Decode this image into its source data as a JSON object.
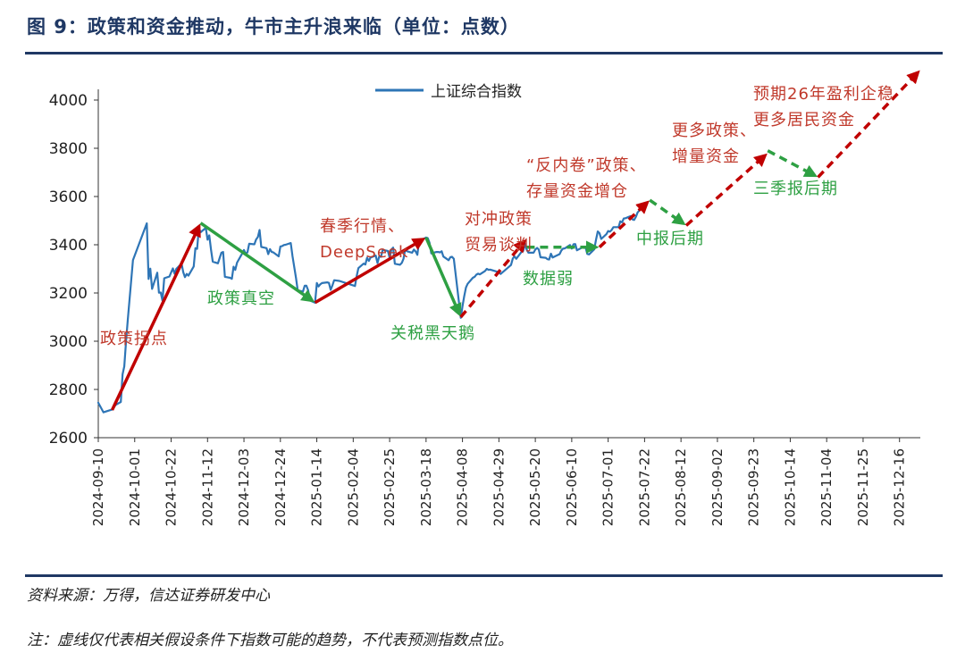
{
  "figure": {
    "title": "图 9：政策和资金推动，牛市主升浪来临（单位：点数）",
    "source": "资料来源：万得，信达证券研发中心",
    "note": "注：虚线仅代表相关假设条件下指数可能的趋势，不代表预测指数点位。"
  },
  "colors": {
    "series": "#2e75b6",
    "up": "#c00000",
    "down": "#2ea043",
    "label_up": "#c0392b",
    "label_down": "#2ea043",
    "axis": "#333333",
    "title": "#1f3864"
  },
  "chart_data": {
    "type": "line",
    "title": "政策和资金推动，牛市主升浪来临",
    "xlabel": "",
    "ylabel": "点数",
    "ylim": [
      2600,
      4000
    ],
    "yticks": [
      2600,
      2800,
      3000,
      3200,
      3400,
      3600,
      3800,
      4000
    ],
    "xlim": [
      "2024-09-10",
      "2025-12-28"
    ],
    "xticks": [
      "2024-09-10",
      "2024-10-01",
      "2024-10-22",
      "2024-11-12",
      "2024-12-03",
      "2024-12-24",
      "2025-01-14",
      "2025-02-04",
      "2025-02-25",
      "2025-03-18",
      "2025-04-08",
      "2025-04-29",
      "2025-05-20",
      "2025-06-10",
      "2025-07-01",
      "2025-07-22",
      "2025-08-12",
      "2025-09-02",
      "2025-09-23",
      "2025-10-14",
      "2025-11-04",
      "2025-11-25",
      "2025-12-16"
    ],
    "legend": {
      "label": "上证综合指数",
      "position": "top"
    },
    "series": [
      {
        "name": "上证综合指数",
        "points": [
          [
            "2024-09-10",
            2745
          ],
          [
            "2024-09-12",
            2718
          ],
          [
            "2024-09-13",
            2705
          ],
          [
            "2024-09-18",
            2717
          ],
          [
            "2024-09-20",
            2736
          ],
          [
            "2024-09-23",
            2748
          ],
          [
            "2024-09-24",
            2863
          ],
          [
            "2024-09-25",
            2896
          ],
          [
            "2024-09-26",
            3001
          ],
          [
            "2024-09-27",
            3088
          ],
          [
            "2024-09-30",
            3336
          ],
          [
            "2024-10-08",
            3489
          ],
          [
            "2024-10-09",
            3258
          ],
          [
            "2024-10-10",
            3301
          ],
          [
            "2024-10-11",
            3217
          ],
          [
            "2024-10-14",
            3284
          ],
          [
            "2024-10-15",
            3201
          ],
          [
            "2024-10-16",
            3202
          ],
          [
            "2024-10-17",
            3169
          ],
          [
            "2024-10-18",
            3261
          ],
          [
            "2024-10-21",
            3268
          ],
          [
            "2024-10-22",
            3285
          ],
          [
            "2024-10-23",
            3302
          ],
          [
            "2024-10-24",
            3280
          ],
          [
            "2024-10-25",
            3300
          ],
          [
            "2024-10-28",
            3322
          ],
          [
            "2024-10-29",
            3286
          ],
          [
            "2024-10-30",
            3266
          ],
          [
            "2024-10-31",
            3279
          ],
          [
            "2024-11-01",
            3272
          ],
          [
            "2024-11-04",
            3310
          ],
          [
            "2024-11-05",
            3386
          ],
          [
            "2024-11-06",
            3383
          ],
          [
            "2024-11-07",
            3470
          ],
          [
            "2024-11-08",
            3452
          ],
          [
            "2024-11-11",
            3470
          ],
          [
            "2024-11-12",
            3421
          ],
          [
            "2024-11-13",
            3439
          ],
          [
            "2024-11-14",
            3379
          ],
          [
            "2024-11-15",
            3330
          ],
          [
            "2024-11-18",
            3323
          ],
          [
            "2024-11-19",
            3346
          ],
          [
            "2024-11-20",
            3367
          ],
          [
            "2024-11-21",
            3370
          ],
          [
            "2024-11-22",
            3267
          ],
          [
            "2024-11-25",
            3263
          ],
          [
            "2024-11-26",
            3259
          ],
          [
            "2024-11-27",
            3309
          ],
          [
            "2024-11-28",
            3296
          ],
          [
            "2024-11-29",
            3326
          ],
          [
            "2024-12-02",
            3364
          ],
          [
            "2024-12-03",
            3378
          ],
          [
            "2024-12-04",
            3364
          ],
          [
            "2024-12-05",
            3368
          ],
          [
            "2024-12-06",
            3404
          ],
          [
            "2024-12-09",
            3402
          ],
          [
            "2024-12-10",
            3422
          ],
          [
            "2024-12-11",
            3432
          ],
          [
            "2024-12-12",
            3461
          ],
          [
            "2024-12-13",
            3391
          ],
          [
            "2024-12-16",
            3386
          ],
          [
            "2024-12-17",
            3361
          ],
          [
            "2024-12-18",
            3382
          ],
          [
            "2024-12-19",
            3370
          ],
          [
            "2024-12-20",
            3368
          ],
          [
            "2024-12-23",
            3352
          ],
          [
            "2024-12-24",
            3393
          ],
          [
            "2024-12-25",
            3394
          ],
          [
            "2024-12-26",
            3399
          ],
          [
            "2024-12-27",
            3400
          ],
          [
            "2024-12-30",
            3407
          ],
          [
            "2024-12-31",
            3352
          ],
          [
            "2025-01-02",
            3262
          ],
          [
            "2025-01-03",
            3211
          ],
          [
            "2025-01-06",
            3206
          ],
          [
            "2025-01-07",
            3230
          ],
          [
            "2025-01-08",
            3230
          ],
          [
            "2025-01-09",
            3211
          ],
          [
            "2025-01-10",
            3169
          ],
          [
            "2025-01-13",
            3160
          ],
          [
            "2025-01-14",
            3241
          ],
          [
            "2025-01-15",
            3227
          ],
          [
            "2025-01-16",
            3236
          ],
          [
            "2025-01-17",
            3241
          ],
          [
            "2025-01-20",
            3244
          ],
          [
            "2025-01-21",
            3242
          ],
          [
            "2025-01-22",
            3213
          ],
          [
            "2025-01-23",
            3231
          ],
          [
            "2025-01-24",
            3253
          ],
          [
            "2025-01-27",
            3250
          ],
          [
            "2025-02-05",
            3229
          ],
          [
            "2025-02-06",
            3270
          ],
          [
            "2025-02-07",
            3303
          ],
          [
            "2025-02-10",
            3322
          ],
          [
            "2025-02-11",
            3318
          ],
          [
            "2025-02-12",
            3346
          ],
          [
            "2025-02-13",
            3333
          ],
          [
            "2025-02-14",
            3347
          ],
          [
            "2025-02-17",
            3355
          ],
          [
            "2025-02-18",
            3324
          ],
          [
            "2025-02-19",
            3352
          ],
          [
            "2025-02-20",
            3350
          ],
          [
            "2025-02-21",
            3379
          ],
          [
            "2025-02-24",
            3374
          ],
          [
            "2025-02-25",
            3346
          ],
          [
            "2025-02-26",
            3380
          ],
          [
            "2025-02-27",
            3388
          ],
          [
            "2025-02-28",
            3321
          ],
          [
            "2025-03-03",
            3317
          ],
          [
            "2025-03-04",
            3325
          ],
          [
            "2025-03-05",
            3342
          ],
          [
            "2025-03-06",
            3381
          ],
          [
            "2025-03-07",
            3373
          ],
          [
            "2025-03-10",
            3367
          ],
          [
            "2025-03-11",
            3380
          ],
          [
            "2025-03-12",
            3372
          ],
          [
            "2025-03-13",
            3358
          ],
          [
            "2025-03-14",
            3419
          ],
          [
            "2025-03-17",
            3426
          ],
          [
            "2025-03-18",
            3430
          ],
          [
            "2025-03-19",
            3427
          ],
          [
            "2025-03-20",
            3408
          ],
          [
            "2025-03-21",
            3364
          ],
          [
            "2025-03-24",
            3370
          ],
          [
            "2025-03-25",
            3370
          ],
          [
            "2025-03-26",
            3368
          ],
          [
            "2025-03-27",
            3373
          ],
          [
            "2025-03-28",
            3351
          ],
          [
            "2025-03-31",
            3336
          ],
          [
            "2025-04-01",
            3348
          ],
          [
            "2025-04-02",
            3350
          ],
          [
            "2025-04-03",
            3342
          ],
          [
            "2025-04-07",
            3097
          ],
          [
            "2025-04-08",
            3145
          ],
          [
            "2025-04-09",
            3186
          ],
          [
            "2025-04-10",
            3223
          ],
          [
            "2025-04-11",
            3238
          ],
          [
            "2025-04-14",
            3263
          ],
          [
            "2025-04-15",
            3267
          ],
          [
            "2025-04-16",
            3276
          ],
          [
            "2025-04-17",
            3280
          ],
          [
            "2025-04-18",
            3277
          ],
          [
            "2025-04-21",
            3291
          ],
          [
            "2025-04-22",
            3300
          ],
          [
            "2025-04-23",
            3296
          ],
          [
            "2025-04-24",
            3297
          ],
          [
            "2025-04-25",
            3295
          ],
          [
            "2025-04-28",
            3288
          ],
          [
            "2025-04-29",
            3286
          ],
          [
            "2025-04-30",
            3279
          ],
          [
            "2025-05-06",
            3316
          ],
          [
            "2025-05-07",
            3343
          ],
          [
            "2025-05-08",
            3352
          ],
          [
            "2025-05-09",
            3342
          ],
          [
            "2025-05-12",
            3370
          ],
          [
            "2025-05-13",
            3374
          ],
          [
            "2025-05-14",
            3404
          ],
          [
            "2025-05-15",
            3380
          ],
          [
            "2025-05-16",
            3367
          ],
          [
            "2025-05-19",
            3367
          ],
          [
            "2025-05-20",
            3380
          ],
          [
            "2025-05-21",
            3387
          ],
          [
            "2025-05-22",
            3380
          ],
          [
            "2025-05-23",
            3348
          ],
          [
            "2025-05-26",
            3346
          ],
          [
            "2025-05-27",
            3340
          ],
          [
            "2025-05-28",
            3339
          ],
          [
            "2025-05-29",
            3363
          ],
          [
            "2025-05-30",
            3347
          ],
          [
            "2025-06-03",
            3361
          ],
          [
            "2025-06-04",
            3376
          ],
          [
            "2025-06-05",
            3384
          ],
          [
            "2025-06-06",
            3385
          ],
          [
            "2025-06-09",
            3399
          ],
          [
            "2025-06-10",
            3384
          ],
          [
            "2025-06-11",
            3402
          ],
          [
            "2025-06-12",
            3403
          ],
          [
            "2025-06-13",
            3377
          ],
          [
            "2025-06-16",
            3388
          ],
          [
            "2025-06-17",
            3387
          ],
          [
            "2025-06-18",
            3388
          ],
          [
            "2025-06-19",
            3362
          ],
          [
            "2025-06-20",
            3360
          ],
          [
            "2025-06-23",
            3381
          ],
          [
            "2025-06-24",
            3420
          ],
          [
            "2025-06-25",
            3455
          ],
          [
            "2025-06-26",
            3448
          ],
          [
            "2025-06-27",
            3424
          ],
          [
            "2025-06-30",
            3444
          ],
          [
            "2025-07-01",
            3457
          ],
          [
            "2025-07-02",
            3454
          ],
          [
            "2025-07-03",
            3461
          ],
          [
            "2025-07-04",
            3473
          ],
          [
            "2025-07-07",
            3473
          ],
          [
            "2025-07-08",
            3497
          ],
          [
            "2025-07-09",
            3493
          ],
          [
            "2025-07-10",
            3509
          ],
          [
            "2025-07-11",
            3510
          ],
          [
            "2025-07-14",
            3519
          ],
          [
            "2025-07-15",
            3505
          ],
          [
            "2025-07-16",
            3503
          ],
          [
            "2025-07-17",
            3516
          ],
          [
            "2025-07-18",
            3534
          ],
          [
            "2025-07-21",
            3559
          ]
        ]
      }
    ],
    "trend_arrows": [
      {
        "from": [
          "2024-09-18",
          2715
        ],
        "to": [
          "2024-11-08",
          3490
        ],
        "direction": "up",
        "style": "solid"
      },
      {
        "from": [
          "2024-11-08",
          3490
        ],
        "to": [
          "2025-01-13",
          3160
        ],
        "direction": "down",
        "style": "solid"
      },
      {
        "from": [
          "2025-01-13",
          3160
        ],
        "to": [
          "2025-03-18",
          3430
        ],
        "direction": "up",
        "style": "solid"
      },
      {
        "from": [
          "2025-03-18",
          3430
        ],
        "to": [
          "2025-04-07",
          3100
        ],
        "direction": "down",
        "style": "solid"
      },
      {
        "from": [
          "2025-04-07",
          3100
        ],
        "to": [
          "2025-05-15",
          3425
        ],
        "direction": "up",
        "style": "dashed"
      },
      {
        "from": [
          "2025-05-15",
          3390
        ],
        "to": [
          "2025-06-26",
          3390
        ],
        "direction": "flat",
        "style": "dashed"
      },
      {
        "from": [
          "2025-06-26",
          3390
        ],
        "to": [
          "2025-07-25",
          3585
        ],
        "direction": "up",
        "style": "dashed"
      },
      {
        "from": [
          "2025-07-25",
          3585
        ],
        "to": [
          "2025-08-15",
          3480
        ],
        "direction": "down",
        "style": "dashed"
      },
      {
        "from": [
          "2025-08-15",
          3480
        ],
        "to": [
          "2025-10-01",
          3780
        ],
        "direction": "up",
        "style": "dashed"
      },
      {
        "from": [
          "2025-10-01",
          3790
        ],
        "to": [
          "2025-10-30",
          3680
        ],
        "direction": "down",
        "style": "dashed"
      },
      {
        "from": [
          "2025-10-30",
          3680
        ],
        "to": [
          "2025-12-28",
          4125
        ],
        "direction": "up",
        "style": "dashed"
      }
    ],
    "annotations": [
      {
        "lines": [
          "政策拐点"
        ],
        "color": "up"
      },
      {
        "lines": [
          "政策真空"
        ],
        "color": "down"
      },
      {
        "lines": [
          "春季行情、",
          "DeepSeek"
        ],
        "color": "up"
      },
      {
        "lines": [
          "关税黑天鹅"
        ],
        "color": "down"
      },
      {
        "lines": [
          "对冲政策",
          "贸易谈判"
        ],
        "color": "up"
      },
      {
        "lines": [
          "数据弱"
        ],
        "color": "down"
      },
      {
        "lines": [
          "“反内卷”政策、",
          "存量资金增仓"
        ],
        "color": "up"
      },
      {
        "lines": [
          "中报后期"
        ],
        "color": "down"
      },
      {
        "lines": [
          "更多政策、",
          "增量资金"
        ],
        "color": "up"
      },
      {
        "lines": [
          "三季报后期"
        ],
        "color": "down"
      },
      {
        "lines": [
          "预期26年盈利企稳",
          "更多居民资金"
        ],
        "color": "up"
      }
    ]
  }
}
